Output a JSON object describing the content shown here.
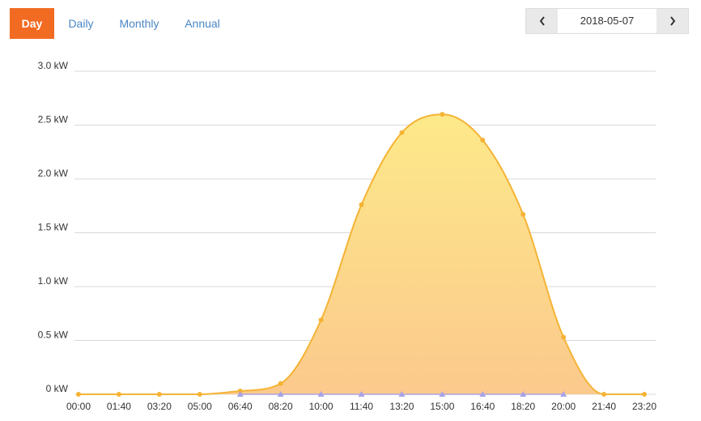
{
  "tabs": [
    "Day",
    "Daily",
    "Monthly",
    "Annual"
  ],
  "date": "2018-05-07",
  "chart_data": {
    "type": "area",
    "categories": [
      "00:00",
      "01:40",
      "03:20",
      "05:00",
      "06:40",
      "08:20",
      "10:00",
      "11:40",
      "13:20",
      "15:00",
      "16:40",
      "18:20",
      "20:00",
      "21:40",
      "23:20"
    ],
    "series": [
      {
        "color": "#f5b335",
        "values": [
          0,
          0,
          0,
          0,
          0.03,
          0.1,
          0.69,
          1.76,
          2.43,
          2.6,
          2.36,
          1.67,
          0.53,
          0,
          0
        ]
      },
      {
        "color": "#a9a3e6",
        "values": [
          null,
          null,
          null,
          null,
          0,
          0,
          0,
          0,
          0,
          0,
          0,
          0,
          0,
          null,
          null
        ]
      }
    ],
    "ylim": [
      0,
      3
    ],
    "yticks": [
      {
        "value": 0,
        "label": "0 kW"
      },
      {
        "value": 0.5,
        "label": "0.5 kW"
      },
      {
        "value": 1,
        "label": "1.0 kW"
      },
      {
        "value": 1.5,
        "label": "1.5 kW"
      },
      {
        "value": 2,
        "label": "2.0 kW"
      },
      {
        "value": 2.5,
        "label": "2.5 kW"
      },
      {
        "value": 3,
        "label": "3.0 kW"
      }
    ],
    "grid": true
  }
}
